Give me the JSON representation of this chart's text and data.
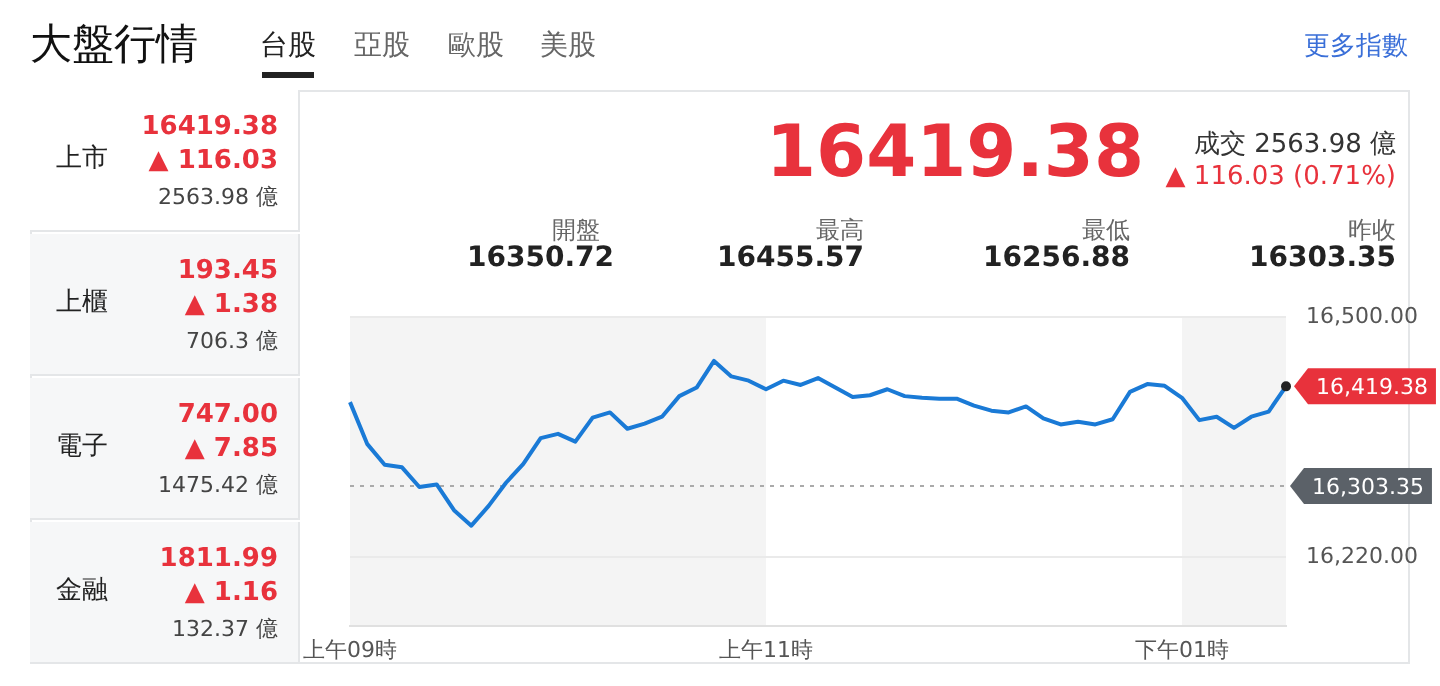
{
  "chart_data": [
    {
      "type": "other",
      "title": "大盤行情",
      "annotations": [
        "台股",
        "亞股",
        "歐股",
        "美股",
        "更多指數"
      ]
    },
    {
      "type": "other",
      "annotations": [
        "上市",
        "16419.38",
        "▲ 116.03",
        "2563.98 億",
        "上櫃",
        "193.45",
        "▲ 1.38",
        "706.3 億",
        "電子",
        "747.00",
        "▲ 7.85",
        "1475.42 億",
        "金融",
        "1811.99",
        "▲ 1.16",
        "132.37 億"
      ]
    },
    {
      "type": "line",
      "title": "16419.38",
      "color": "#1a7ad6",
      "annotations": [
        "成交 2563.98 億",
        "▲ 116.03 (0.71%)",
        "開盤",
        "16350.72",
        "最高",
        "16455.57",
        "最低",
        "16256.88",
        "昨收",
        "16303.35",
        "16,419.38"
      ],
      "categories": [
        "上午09時",
        null,
        null,
        null,
        null,
        null,
        null,
        null,
        null,
        null,
        null,
        null,
        null,
        null,
        null,
        null,
        null,
        null,
        null,
        null,
        null,
        null,
        null,
        null,
        "上午11時",
        null,
        null,
        null,
        null,
        null,
        null,
        null,
        null,
        null,
        null,
        null,
        null,
        null,
        null,
        null,
        null,
        null,
        null,
        null,
        null,
        null,
        null,
        null,
        "下午01時",
        null,
        null,
        null,
        null,
        null,
        null
      ],
      "values": [
        16401,
        16352,
        16328,
        16325,
        16302,
        16305,
        16275,
        16257,
        16280,
        16307,
        16329,
        16359,
        16364,
        16355,
        16383,
        16389,
        16370,
        16376,
        16384,
        16408,
        16418,
        16449,
        16431,
        16426,
        16416,
        16426,
        16421,
        16429,
        16418,
        16407,
        16409,
        16416,
        16408,
        16406,
        16405,
        16405,
        16397,
        16391,
        16389,
        16396,
        16382,
        16375,
        16378,
        16375,
        16381,
        16413,
        16422,
        16420,
        16406,
        16380,
        16384,
        16371,
        16384,
        16390,
        16419.38
      ],
      "ylim": [
        16140,
        16500
      ],
      "yticks": [
        {
          "value": 16220,
          "label": "16,220.00"
        },
        {
          "value": 16500,
          "label": "16,500.00"
        }
      ],
      "grid": "y",
      "ref_lines": [
        {
          "axis": "y",
          "value": 16303.35,
          "label": "16,303.35",
          "color": "#aaaaaa",
          "line_style": "dotted"
        }
      ]
    }
  ]
}
